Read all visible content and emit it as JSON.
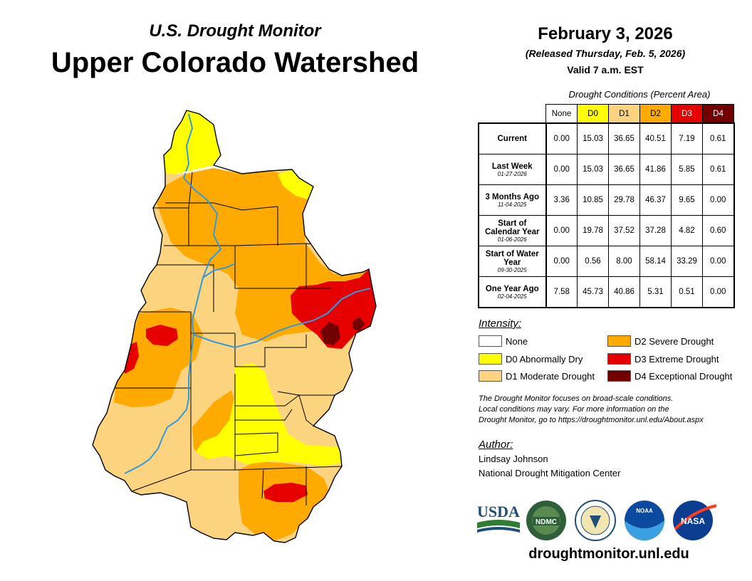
{
  "header": {
    "subtitle": "U.S. Drought Monitor",
    "title": "Upper Colorado Watershed",
    "date": "February 3, 2026",
    "released": "(Released Thursday, Feb. 5, 2026)",
    "valid": "Valid 7 a.m. EST"
  },
  "table": {
    "caption": "Drought Conditions (Percent Area)",
    "columns": [
      "None",
      "D0",
      "D1",
      "D2",
      "D3",
      "D4"
    ],
    "column_colors": [
      "#ffffff",
      "#ffff00",
      "#fcd37f",
      "#ffaa00",
      "#e60000",
      "#730000"
    ],
    "rows": [
      {
        "label": "Current",
        "date": "",
        "values": [
          "0.00",
          "15.03",
          "36.65",
          "40.51",
          "7.19",
          "0.61"
        ]
      },
      {
        "label": "Last Week",
        "date": "01-27-2026",
        "values": [
          "0.00",
          "15.03",
          "36.65",
          "41.86",
          "5.85",
          "0.61"
        ]
      },
      {
        "label": "3 Months Ago",
        "date": "11-04-2025",
        "values": [
          "3.36",
          "10.85",
          "29.78",
          "46.37",
          "9.65",
          "0.00"
        ]
      },
      {
        "label": "Start of Calendar Year",
        "date": "01-06-2026",
        "values": [
          "0.00",
          "19.78",
          "37.52",
          "37.28",
          "4.82",
          "0.60"
        ]
      },
      {
        "label": "Start of Water Year",
        "date": "09-30-2025",
        "values": [
          "0.00",
          "0.56",
          "8.00",
          "58.14",
          "33.29",
          "0.00"
        ]
      },
      {
        "label": "One Year Ago",
        "date": "02-04-2025",
        "values": [
          "7.58",
          "45.73",
          "40.86",
          "5.31",
          "0.51",
          "0.00"
        ]
      }
    ]
  },
  "legend": {
    "title": "Intensity:",
    "items": [
      {
        "label": "None",
        "color": "#ffffff"
      },
      {
        "label": "D0 Abnormally Dry",
        "color": "#ffff00"
      },
      {
        "label": "D1 Moderate Drought",
        "color": "#fcd37f"
      },
      {
        "label": "D2 Severe Drought",
        "color": "#ffaa00"
      },
      {
        "label": "D3 Extreme Drought",
        "color": "#e60000"
      },
      {
        "label": "D4 Exceptional Drought",
        "color": "#730000"
      }
    ]
  },
  "note": {
    "line1": "The Drought Monitor focuses on broad-scale conditions.",
    "line2": "Local conditions may vary. For more information on the",
    "line3": "Drought Monitor, go to https://droughtmonitor.unl.edu/About.aspx"
  },
  "author": {
    "title": "Author:",
    "name": "Lindsay Johnson",
    "org": "National Drought Mitigation Center"
  },
  "logos": {
    "usda": "USDA",
    "ndmc": "NDMC",
    "noaa": "NOAA",
    "nasa": "NASA"
  },
  "footer": {
    "url": "droughtmonitor.unl.edu"
  },
  "colors": {
    "none": "#ffffff",
    "d0": "#ffff00",
    "d1": "#fcd37f",
    "d2": "#ffaa00",
    "d3": "#e60000",
    "d4": "#730000",
    "river": "#3399dd"
  }
}
